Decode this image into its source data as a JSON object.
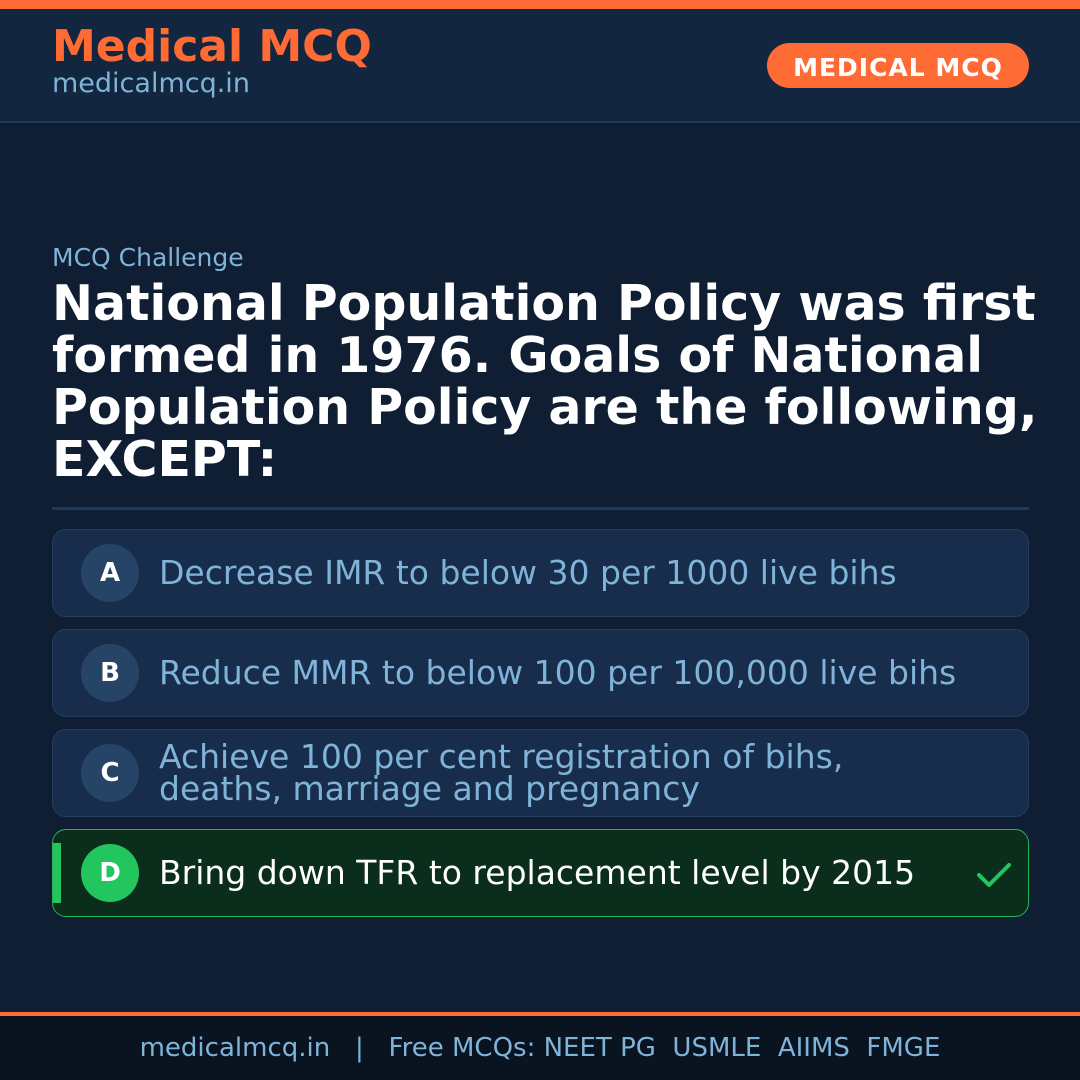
{
  "header": {
    "brand_title": "Medical MCQ",
    "brand_url": "medicalmcq.in",
    "badge": "MEDICAL MCQ"
  },
  "question": {
    "kicker": "MCQ Challenge",
    "text": "National Population Policy was first formed in 1976. Goals of National Population Policy are the following, EXCEPT:"
  },
  "options": [
    {
      "letter": "A",
      "text": "Decrease IMR to below 30 per 1000 live bihs",
      "correct": false
    },
    {
      "letter": "B",
      "text": "Reduce MMR to below 100 per 100,000 live bihs",
      "correct": false
    },
    {
      "letter": "C",
      "text": "Achieve 100 per cent registration of bihs, deaths, marriage and pregnancy",
      "correct": false
    },
    {
      "letter": "D",
      "text": "Bring down TFR to replacement level by 2015",
      "correct": true
    }
  ],
  "footer": {
    "text": "medicalmcq.in   |   Free MCQs: NEET PG  USMLE  AIIMS  FMGE"
  },
  "icons": {
    "correct_indicator": "checkmark-icon"
  },
  "colors": {
    "accent": "#ff6b35",
    "background": "#0f1e33",
    "header_background": "#12263f",
    "muted_text": "#7fb3d8",
    "option_background": "#172d4b",
    "correct_green": "#22c55e",
    "correct_background": "#0b2e1c"
  }
}
